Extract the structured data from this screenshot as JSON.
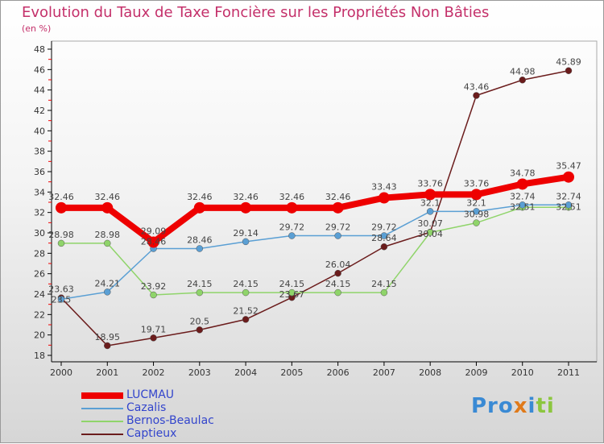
{
  "title": "Evolution du Taux de Taxe Foncière sur les Propriétés Non Bâties",
  "unit": "(en %)",
  "logo": "Proxiti",
  "chart_data": {
    "type": "line",
    "title": "Evolution du Taux de Taxe Foncière sur les Propriétés Non Bâties",
    "ylabel": "(en %)",
    "ylim": [
      18,
      48
    ],
    "yticks": [
      18,
      20,
      22,
      24,
      26,
      28,
      30,
      32,
      34,
      36,
      38,
      40,
      42,
      44,
      46,
      48
    ],
    "x": [
      "2000",
      "2001",
      "2002",
      "2003",
      "2004",
      "2005",
      "2006",
      "2007",
      "2008",
      "2009",
      "2010",
      "2011"
    ],
    "legend": "bottom-left",
    "series": [
      {
        "name": "LUCMAU",
        "color": "#ee0000",
        "values": [
          32.46,
          32.46,
          29.09,
          32.46,
          32.46,
          32.46,
          32.46,
          33.43,
          33.76,
          33.76,
          34.78,
          35.47
        ]
      },
      {
        "name": "Cazalis",
        "color": "#5a9fd4",
        "values": [
          23.5,
          24.21,
          28.46,
          28.46,
          29.14,
          29.72,
          29.72,
          29.72,
          32.1,
          32.1,
          32.74,
          32.74
        ]
      },
      {
        "name": "Bernos-Beaulac",
        "color": "#8fd46a",
        "values": [
          28.98,
          28.98,
          23.92,
          24.15,
          24.15,
          24.15,
          24.15,
          24.15,
          30.04,
          30.98,
          32.51,
          32.51
        ]
      },
      {
        "name": "Captieux",
        "color": "#6b1c1c",
        "values": [
          23.63,
          18.95,
          19.71,
          20.5,
          21.52,
          23.67,
          26.04,
          28.64,
          30.07,
          43.46,
          44.98,
          45.89
        ]
      }
    ]
  }
}
